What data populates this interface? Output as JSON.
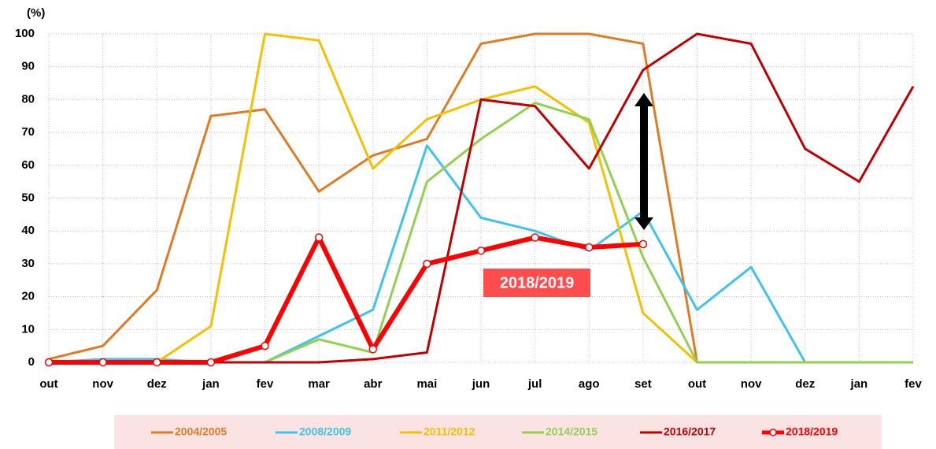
{
  "chart_data": {
    "type": "line",
    "y_label": "(%)",
    "annotation": "2018/2019",
    "categories": [
      "out",
      "nov",
      "dez",
      "jan",
      "fev",
      "mar",
      "abr",
      "mai",
      "jun",
      "jul",
      "ago",
      "set",
      "out",
      "nov",
      "dez",
      "jan",
      "fev"
    ],
    "ylim": [
      0,
      100
    ],
    "yticks": [
      0,
      10,
      20,
      30,
      40,
      50,
      60,
      70,
      80,
      90,
      100
    ],
    "grid": true,
    "series": [
      {
        "name": "2004/2005",
        "color": "#e07b24",
        "width": 3,
        "values": [
          1,
          5,
          22,
          75,
          77,
          52,
          63,
          68,
          97,
          100,
          100,
          97,
          0,
          null,
          null,
          null,
          null
        ]
      },
      {
        "name": "2008/2009",
        "color": "#3fc3ee",
        "width": 3,
        "values": [
          0,
          1,
          1,
          0,
          0,
          8,
          16,
          66,
          44,
          40,
          34,
          46,
          16,
          29,
          0,
          null,
          null
        ]
      },
      {
        "name": "2011/2012",
        "color": "#f5c000",
        "width": 3,
        "values": [
          null,
          null,
          0,
          11,
          100,
          98,
          59,
          74,
          80,
          84,
          73,
          15,
          0,
          null,
          null,
          null,
          null
        ]
      },
      {
        "name": "2014/2015",
        "color": "#92d050",
        "width": 3,
        "values": [
          null,
          null,
          null,
          null,
          0,
          7,
          3,
          55,
          68,
          79,
          74,
          32,
          0,
          0,
          0,
          0,
          0
        ]
      },
      {
        "name": "2016/2017",
        "color": "#c00000",
        "width": 3,
        "values": [
          0,
          0,
          0,
          0,
          0,
          0,
          1,
          3,
          80,
          78,
          59,
          89,
          100,
          97,
          65,
          55,
          84
        ]
      },
      {
        "name": "2018/2019",
        "color": "#ff0000",
        "width": 6,
        "markers": true,
        "values": [
          0,
          0,
          0,
          0,
          5,
          38,
          4,
          30,
          34,
          38,
          35,
          36,
          null,
          null,
          null,
          null,
          null
        ]
      }
    ]
  }
}
